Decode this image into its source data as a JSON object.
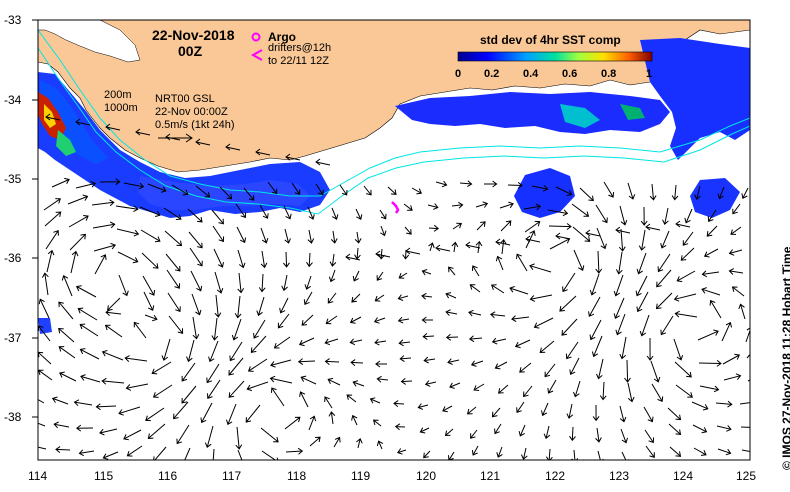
{
  "map": {
    "date": "22-Nov-2018",
    "time": "00Z",
    "argo_label": "Argo",
    "drifters_label": "drifters@12h",
    "drifters_to": "to 22/11 12Z",
    "depth_200": "200m",
    "depth_1000": "1000m",
    "product": "NRT00 GSL",
    "product_time": "22-Nov 00:00Z",
    "scale_label": "0.5m/s (1kt 24h)",
    "colorbar_title": "std dev of 4hr SST comp",
    "colorbar_ticks": [
      "0",
      "0.2",
      "0.4",
      "0.6",
      "0.8",
      "1"
    ],
    "credit": "© IMOS 27-Nov-2018 11:28 Hobart Time",
    "x_ticks": [
      "114",
      "115",
      "116",
      "117",
      "118",
      "119",
      "120",
      "121",
      "122",
      "123",
      "124",
      "125"
    ],
    "y_ticks": [
      "-33",
      "-34",
      "-35",
      "-36",
      "-37",
      "-38"
    ],
    "colors": {
      "land": "#fac896",
      "argo": "#ff00ff",
      "drifter": "#ff00ff",
      "isobath": "#00e5e5"
    }
  }
}
